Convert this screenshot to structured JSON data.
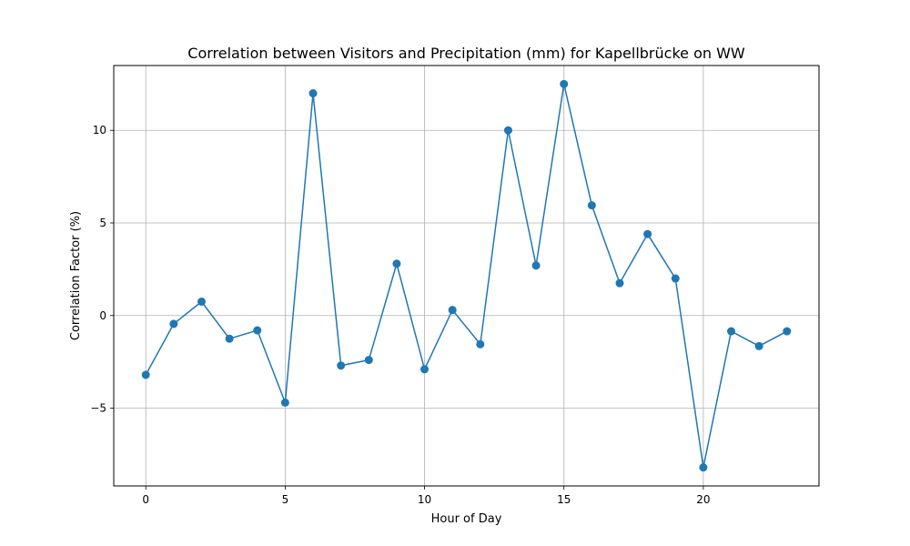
{
  "chart_data": {
    "type": "line",
    "title": "Correlation between Visitors and Precipitation (mm) for Kapellbrücke on WW",
    "xlabel": "Hour of Day",
    "ylabel": "Correlation Factor (%)",
    "x": [
      0,
      1,
      2,
      3,
      4,
      5,
      6,
      7,
      8,
      9,
      10,
      11,
      12,
      13,
      14,
      15,
      16,
      17,
      18,
      19,
      20,
      21,
      22,
      23
    ],
    "series": [
      {
        "values": [
          -3.2,
          -0.45,
          0.75,
          -1.25,
          -0.8,
          -4.7,
          12.0,
          -2.7,
          -2.4,
          2.8,
          -2.9,
          0.3,
          -1.55,
          10.0,
          2.7,
          12.5,
          5.95,
          1.75,
          4.4,
          2.0,
          -8.2,
          -0.85,
          -1.65,
          -0.85
        ],
        "color": "#1f77b4"
      }
    ],
    "xlim": [
      -1.15,
      24.15
    ],
    "ylim": [
      -9.2,
      13.5
    ],
    "x_ticks": [
      0,
      5,
      10,
      15,
      20
    ],
    "y_ticks": [
      -5,
      0,
      5,
      10
    ],
    "y_tick_labels": [
      "−5",
      "0",
      "5",
      "10"
    ],
    "grid": true
  }
}
